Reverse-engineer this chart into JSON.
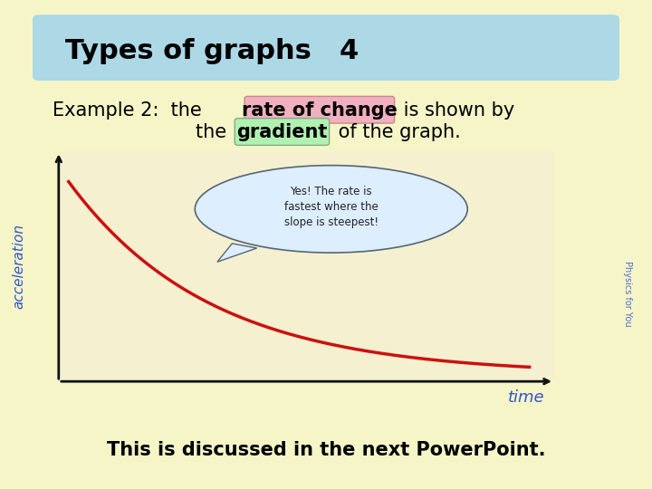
{
  "bg_color": "#f5f5c8",
  "header_color_left": "#add8e6",
  "header_color_right": "#e8f8ff",
  "title_text": "Types of graphs",
  "title_number": "4",
  "title_fontsize": 22,
  "example_line1_plain_left": "Example 2:  the ",
  "example_highlight_text": "rate of change",
  "example_line1_plain_right": " is shown by",
  "example_line2_left": "the ",
  "example_highlight2_text": "gradient",
  "example_line2_right": " of the graph.",
  "highlight_color": "#f0b0c0",
  "highlight2_color": "#b0f0b0",
  "text_color": "#000000",
  "blue_text_color": "#3355cc",
  "graph_bg": "#f5f0d0",
  "curve_color": "#cc1111",
  "axis_color": "#111111",
  "time_label": "time",
  "accel_label": "acceleration",
  "bubble_text": "Yes! The rate is\nfastest where the\nslope is steepest!",
  "bubble_color": "#ddeeff",
  "bottom_text": "This is discussed in the next PowerPoint.",
  "watermark": "Physics for You",
  "watermark_color": "#3355cc"
}
